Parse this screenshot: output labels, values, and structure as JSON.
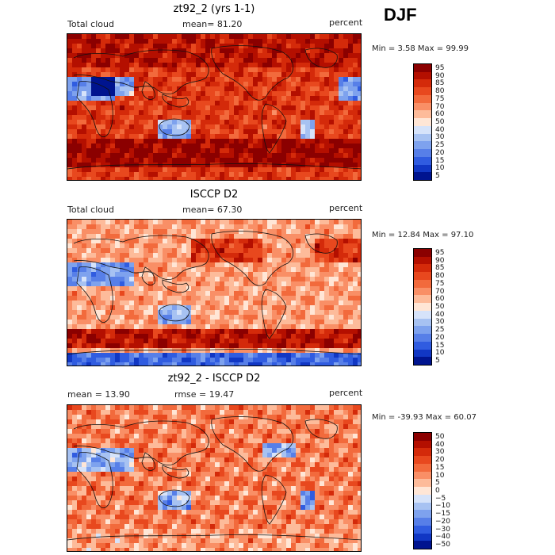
{
  "season": "DJF",
  "panels": [
    {
      "id": "model",
      "title": "zt92_2 (yrs 1-1)",
      "left_label": "Total cloud",
      "center_label": "mean=  81.20",
      "right_label": "percent",
      "minmax": "Min =    3.58 Max =   99.99",
      "colorbar": {
        "labels": [
          "95",
          "90",
          "85",
          "80",
          "75",
          "70",
          "60",
          "50",
          "40",
          "30",
          "25",
          "20",
          "15",
          "10",
          "5"
        ],
        "colors": [
          "#8b0000",
          "#b40f00",
          "#d42a0a",
          "#e8481e",
          "#f26a3c",
          "#f98f66",
          "#fdbb9a",
          "#ffe6d6",
          "#d6e3fa",
          "#a7c2f2",
          "#7ea2ee",
          "#577fe8",
          "#305ce0",
          "#1137c4",
          "#00148f"
        ]
      }
    },
    {
      "id": "obs",
      "title": "ISCCP D2",
      "left_label": "Total cloud",
      "center_label": "mean=  67.30",
      "right_label": "percent",
      "minmax": "Min =   12.84 Max =   97.10",
      "colorbar": {
        "labels": [
          "95",
          "90",
          "85",
          "80",
          "75",
          "70",
          "60",
          "50",
          "40",
          "30",
          "25",
          "20",
          "15",
          "10",
          "5"
        ],
        "colors": [
          "#8b0000",
          "#b40f00",
          "#d42a0a",
          "#e8481e",
          "#f26a3c",
          "#f98f66",
          "#fdbb9a",
          "#ffe6d6",
          "#d6e3fa",
          "#a7c2f2",
          "#7ea2ee",
          "#577fe8",
          "#305ce0",
          "#1137c4",
          "#00148f"
        ]
      }
    },
    {
      "id": "diff",
      "title": "zt92_2 - ISCCP D2",
      "left_label": "mean =   13.90",
      "center_label": "rmse =   19.47",
      "right_label": "percent",
      "minmax": "Min =  -39.93 Max =   60.07",
      "colorbar": {
        "labels": [
          "50",
          "40",
          "30",
          "20",
          "15",
          "10",
          "5",
          "0",
          "−5",
          "−10",
          "−15",
          "−20",
          "−30",
          "−40",
          "−50"
        ],
        "colors": [
          "#8b0000",
          "#b40f00",
          "#d42a0a",
          "#e8481e",
          "#f26a3c",
          "#f98f66",
          "#fdbb9a",
          "#ffe6d6",
          "#d6e3fa",
          "#a7c2f2",
          "#7ea2ee",
          "#577fe8",
          "#305ce0",
          "#1137c4",
          "#00148f"
        ]
      }
    }
  ],
  "chart_data": [
    {
      "type": "heatmap",
      "title": "zt92_2 (yrs 1-1)",
      "variable": "Total cloud",
      "units": "percent",
      "mean": 81.2,
      "min": 3.58,
      "max": 99.99,
      "levels": [
        5,
        10,
        15,
        20,
        25,
        30,
        40,
        50,
        60,
        70,
        75,
        80,
        85,
        90,
        95
      ]
    },
    {
      "type": "heatmap",
      "title": "ISCCP D2",
      "variable": "Total cloud",
      "units": "percent",
      "mean": 67.3,
      "min": 12.84,
      "max": 97.1,
      "levels": [
        5,
        10,
        15,
        20,
        25,
        30,
        40,
        50,
        60,
        70,
        75,
        80,
        85,
        90,
        95
      ]
    },
    {
      "type": "heatmap",
      "title": "zt92_2 - ISCCP D2",
      "units": "percent",
      "mean": 13.9,
      "rmse": 19.47,
      "min": -39.93,
      "max": 60.07,
      "levels": [
        -50,
        -40,
        -30,
        -20,
        -15,
        -10,
        -5,
        0,
        5,
        10,
        15,
        20,
        30,
        40,
        50
      ]
    }
  ]
}
